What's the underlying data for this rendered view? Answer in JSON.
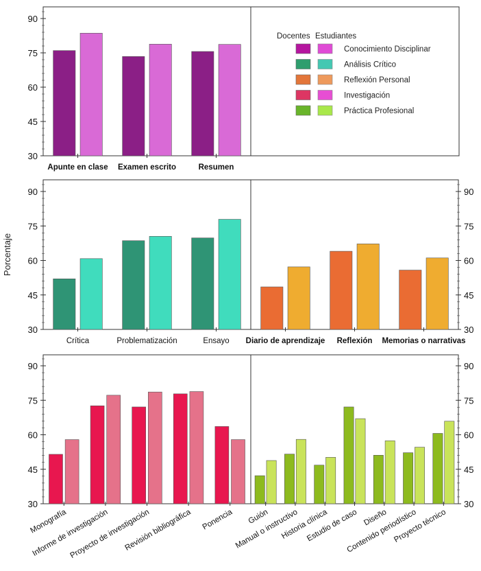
{
  "figure": {
    "ylabel": "Porcentaje"
  },
  "legend": {
    "header_docentes": "Docentes",
    "header_estudiantes": "Estudiantes",
    "items": [
      {
        "label": "Conocimiento Disciplinar",
        "docentes_color": "#b5169f",
        "estudiantes_color": "#e04bd6"
      },
      {
        "label": "Análisis Crítico",
        "docentes_color": "#2f9e6e",
        "estudiantes_color": "#44c8b2"
      },
      {
        "label": "Reflexión Personal",
        "docentes_color": "#e3763a",
        "estudiantes_color": "#ee9a5c"
      },
      {
        "label": "Investigación",
        "docentes_color": "#dd3663",
        "estudiantes_color": "#e74ed3"
      },
      {
        "label": "Práctica Profesional",
        "docentes_color": "#69b52a",
        "estudiantes_color": "#a9e84a"
      }
    ]
  },
  "chart_data": [
    {
      "type": "bar",
      "title": "Conocimiento Disciplinar",
      "ylabel": "Porcentaje",
      "ylim": [
        30,
        95
      ],
      "yticks": [
        30,
        45,
        60,
        75,
        90
      ],
      "y_axis_side": "left",
      "label_rotation": 0,
      "label_bold": true,
      "categories": [
        "Apunte en clase",
        "Examen escrito",
        "Resumen"
      ],
      "series": [
        {
          "name": "Docentes",
          "color": "#8b1f86",
          "values": [
            76.0,
            73.4,
            75.6
          ]
        },
        {
          "name": "Estudiantes",
          "color": "#d96ad6",
          "values": [
            83.6,
            78.8,
            78.7
          ]
        }
      ]
    },
    {
      "type": "bar",
      "title": "Análisis Crítico",
      "ylabel": "Porcentaje",
      "ylim": [
        30,
        95
      ],
      "yticks": [
        30,
        45,
        60,
        75,
        90
      ],
      "y_axis_side": "left",
      "label_rotation": 0,
      "label_bold": false,
      "categories": [
        "Crítica",
        "Problematización",
        "Ensayo"
      ],
      "series": [
        {
          "name": "Docentes",
          "color": "#2f9475",
          "values": [
            52.0,
            68.6,
            69.8
          ]
        },
        {
          "name": "Estudiantes",
          "color": "#40dcbd",
          "values": [
            60.8,
            70.5,
            77.9
          ]
        }
      ]
    },
    {
      "type": "bar",
      "title": "Reflexión Personal",
      "ylabel": "Porcentaje",
      "ylim": [
        30,
        95
      ],
      "yticks": [
        30,
        45,
        60,
        75,
        90
      ],
      "y_axis_side": "right",
      "label_rotation": 0,
      "label_bold": true,
      "categories": [
        "Diario de aprendizaje",
        "Reflexión",
        "Memorias o narrativas"
      ],
      "series": [
        {
          "name": "Docentes",
          "color": "#ea6c33",
          "values": [
            48.5,
            64.0,
            55.8
          ]
        },
        {
          "name": "Estudiantes",
          "color": "#efac30",
          "values": [
            57.2,
            67.2,
            61.1
          ]
        }
      ]
    },
    {
      "type": "bar",
      "title": "Investigación",
      "ylabel": "Porcentaje",
      "ylim": [
        30,
        95
      ],
      "yticks": [
        30,
        45,
        60,
        75,
        90
      ],
      "y_axis_side": "left",
      "label_rotation": -30,
      "label_bold": false,
      "categories": [
        "Monografía",
        "Informe de investigación",
        "Proyecto de investigación",
        "Revisión bibliográfica",
        "Ponencia"
      ],
      "series": [
        {
          "name": "Docentes",
          "color": "#e8174f",
          "values": [
            51.5,
            72.6,
            72.1,
            77.8,
            63.6
          ]
        },
        {
          "name": "Estudiantes",
          "color": "#e5728a",
          "values": [
            57.9,
            77.2,
            78.6,
            78.8,
            57.9
          ]
        }
      ]
    },
    {
      "type": "bar",
      "title": "Práctica Profesional",
      "ylabel": "Porcentaje",
      "ylim": [
        30,
        95
      ],
      "yticks": [
        30,
        45,
        60,
        75,
        90
      ],
      "y_axis_side": "right",
      "label_rotation": -30,
      "label_bold": false,
      "categories": [
        "Guión",
        "Manual o instructivo",
        "Historia clínica",
        "Estudio de caso",
        "Diseño",
        "Contenido periodístico",
        "Proyecto técnico"
      ],
      "series": [
        {
          "name": "Docentes",
          "color": "#8dba1e",
          "values": [
            42.2,
            51.6,
            46.8,
            72.1,
            51.1,
            52.2,
            60.6
          ]
        },
        {
          "name": "Estudiantes",
          "color": "#c9e35a",
          "values": [
            48.8,
            58.0,
            50.2,
            67.0,
            57.4,
            54.6,
            65.9
          ]
        }
      ]
    }
  ]
}
